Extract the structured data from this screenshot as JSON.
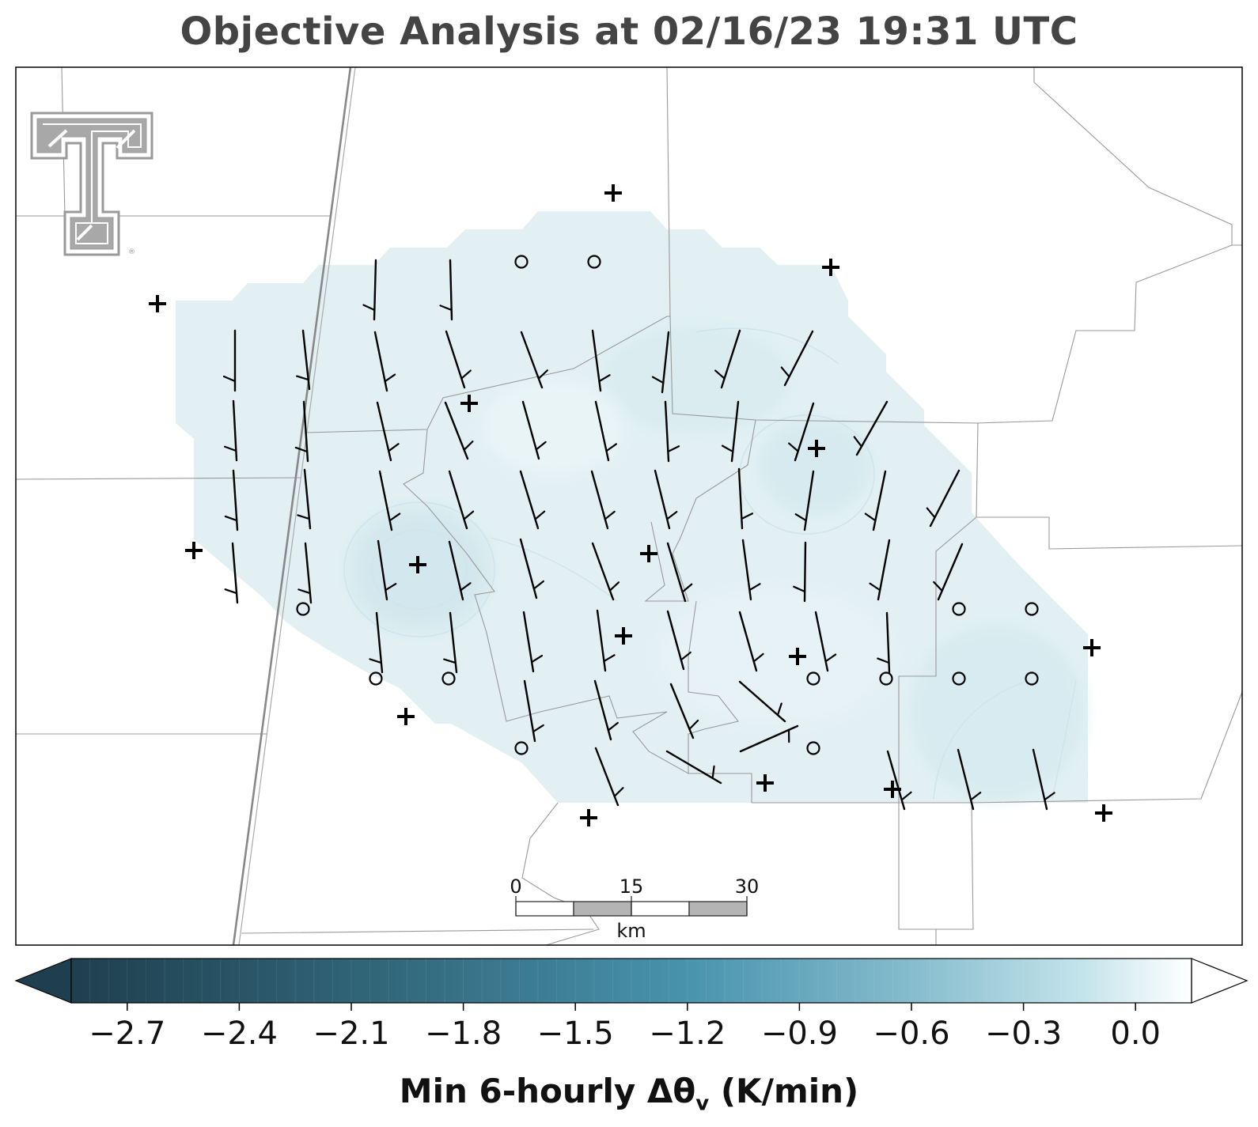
{
  "title": "Objective Analysis at 02/16/23 19:31 UTC",
  "colorbar": {
    "label_prefix": "Min 6-hourly Δθ",
    "label_sub": "v",
    "label_suffix": " (K/min)",
    "ticks": [
      "−2.7",
      "−2.4",
      "−2.1",
      "−1.8",
      "−1.5",
      "−1.2",
      "−0.9",
      "−0.6",
      "−0.3",
      "0.0"
    ],
    "tick_values": [
      -2.7,
      -2.4,
      -2.1,
      -1.8,
      -1.5,
      -1.2,
      -0.9,
      -0.6,
      -0.3,
      0.0
    ],
    "range": [
      -2.85,
      0.15
    ],
    "colors": [
      "#1f3f4e",
      "#336a7e",
      "#4893ad",
      "#85bccd",
      "#c2e3ea",
      "#ffffff"
    ],
    "extend": "both"
  },
  "scale_bar": {
    "ticks": [
      "0",
      "15",
      "30"
    ],
    "unit": "km"
  },
  "logo": {
    "name": "texas-tech-double-t-logo"
  },
  "legend_markers": {
    "plus": "station",
    "circle": "calm"
  },
  "field": {
    "fill": "#e2f0f3",
    "min_value": -0.65
  }
}
